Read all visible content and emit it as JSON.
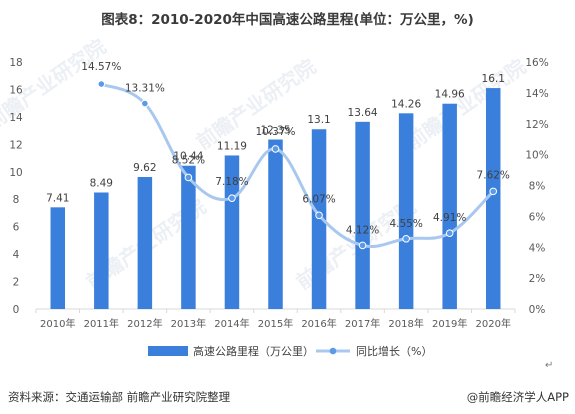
{
  "title": "图表8：2010-2020年中国高速公路里程(单位：万公里，%)",
  "source": "资料来源：交通运输部 前瞻产业研究院整理",
  "brand": "@前瞻经济学人APP",
  "watermark": "前瞻产业研究院",
  "return_glyph": "↵",
  "colors": {
    "bar": "#3b7fdc",
    "line": "#a8c8f0",
    "marker": "#5b9ae8",
    "axis": "#d9d9d9",
    "text": "#595959"
  },
  "chart_data": {
    "type": "bar",
    "title": "图表8：2010-2020年中国高速公路里程(单位：万公里，%)",
    "categories": [
      "2010年",
      "2011年",
      "2012年",
      "2013年",
      "2014年",
      "2015年",
      "2016年",
      "2017年",
      "2018年",
      "2019年",
      "2020年"
    ],
    "series": [
      {
        "name": "高速公路里程（万公里）",
        "type": "bar",
        "axis": "left",
        "values": [
          7.41,
          8.49,
          9.62,
          10.44,
          11.19,
          12.35,
          13.1,
          13.64,
          14.26,
          14.96,
          16.1
        ],
        "labels": [
          "7.41",
          "8.49",
          "9.62",
          "10.44",
          "11.19",
          "12.35",
          "13.1",
          "13.64",
          "14.26",
          "14.96",
          "16.1"
        ]
      },
      {
        "name": "同比增长（%）",
        "type": "line",
        "axis": "right",
        "values": [
          null,
          14.57,
          13.31,
          8.52,
          7.18,
          10.37,
          6.07,
          4.12,
          4.55,
          4.91,
          7.62
        ],
        "labels": [
          "",
          "14.57%",
          "13.31%",
          "8.52%",
          "7.18%",
          "10.37%",
          "6.07%",
          "4.12%",
          "4.55%",
          "4.91%",
          "7.62%"
        ]
      }
    ],
    "left_axis": {
      "ylim": [
        0,
        18
      ],
      "ticks": [
        0,
        2,
        4,
        6,
        8,
        10,
        12,
        14,
        16,
        18
      ],
      "tick_labels": [
        "0",
        "2",
        "4",
        "6",
        "8",
        "10",
        "12",
        "14",
        "16",
        "18"
      ]
    },
    "right_axis": {
      "ylim": [
        0,
        16
      ],
      "ticks": [
        0,
        2,
        4,
        6,
        8,
        10,
        12,
        14,
        16
      ],
      "tick_labels": [
        "0%",
        "2%",
        "4%",
        "6%",
        "8%",
        "10%",
        "12%",
        "14%",
        "16%"
      ]
    },
    "grid": false,
    "legend_position": "bottom"
  }
}
